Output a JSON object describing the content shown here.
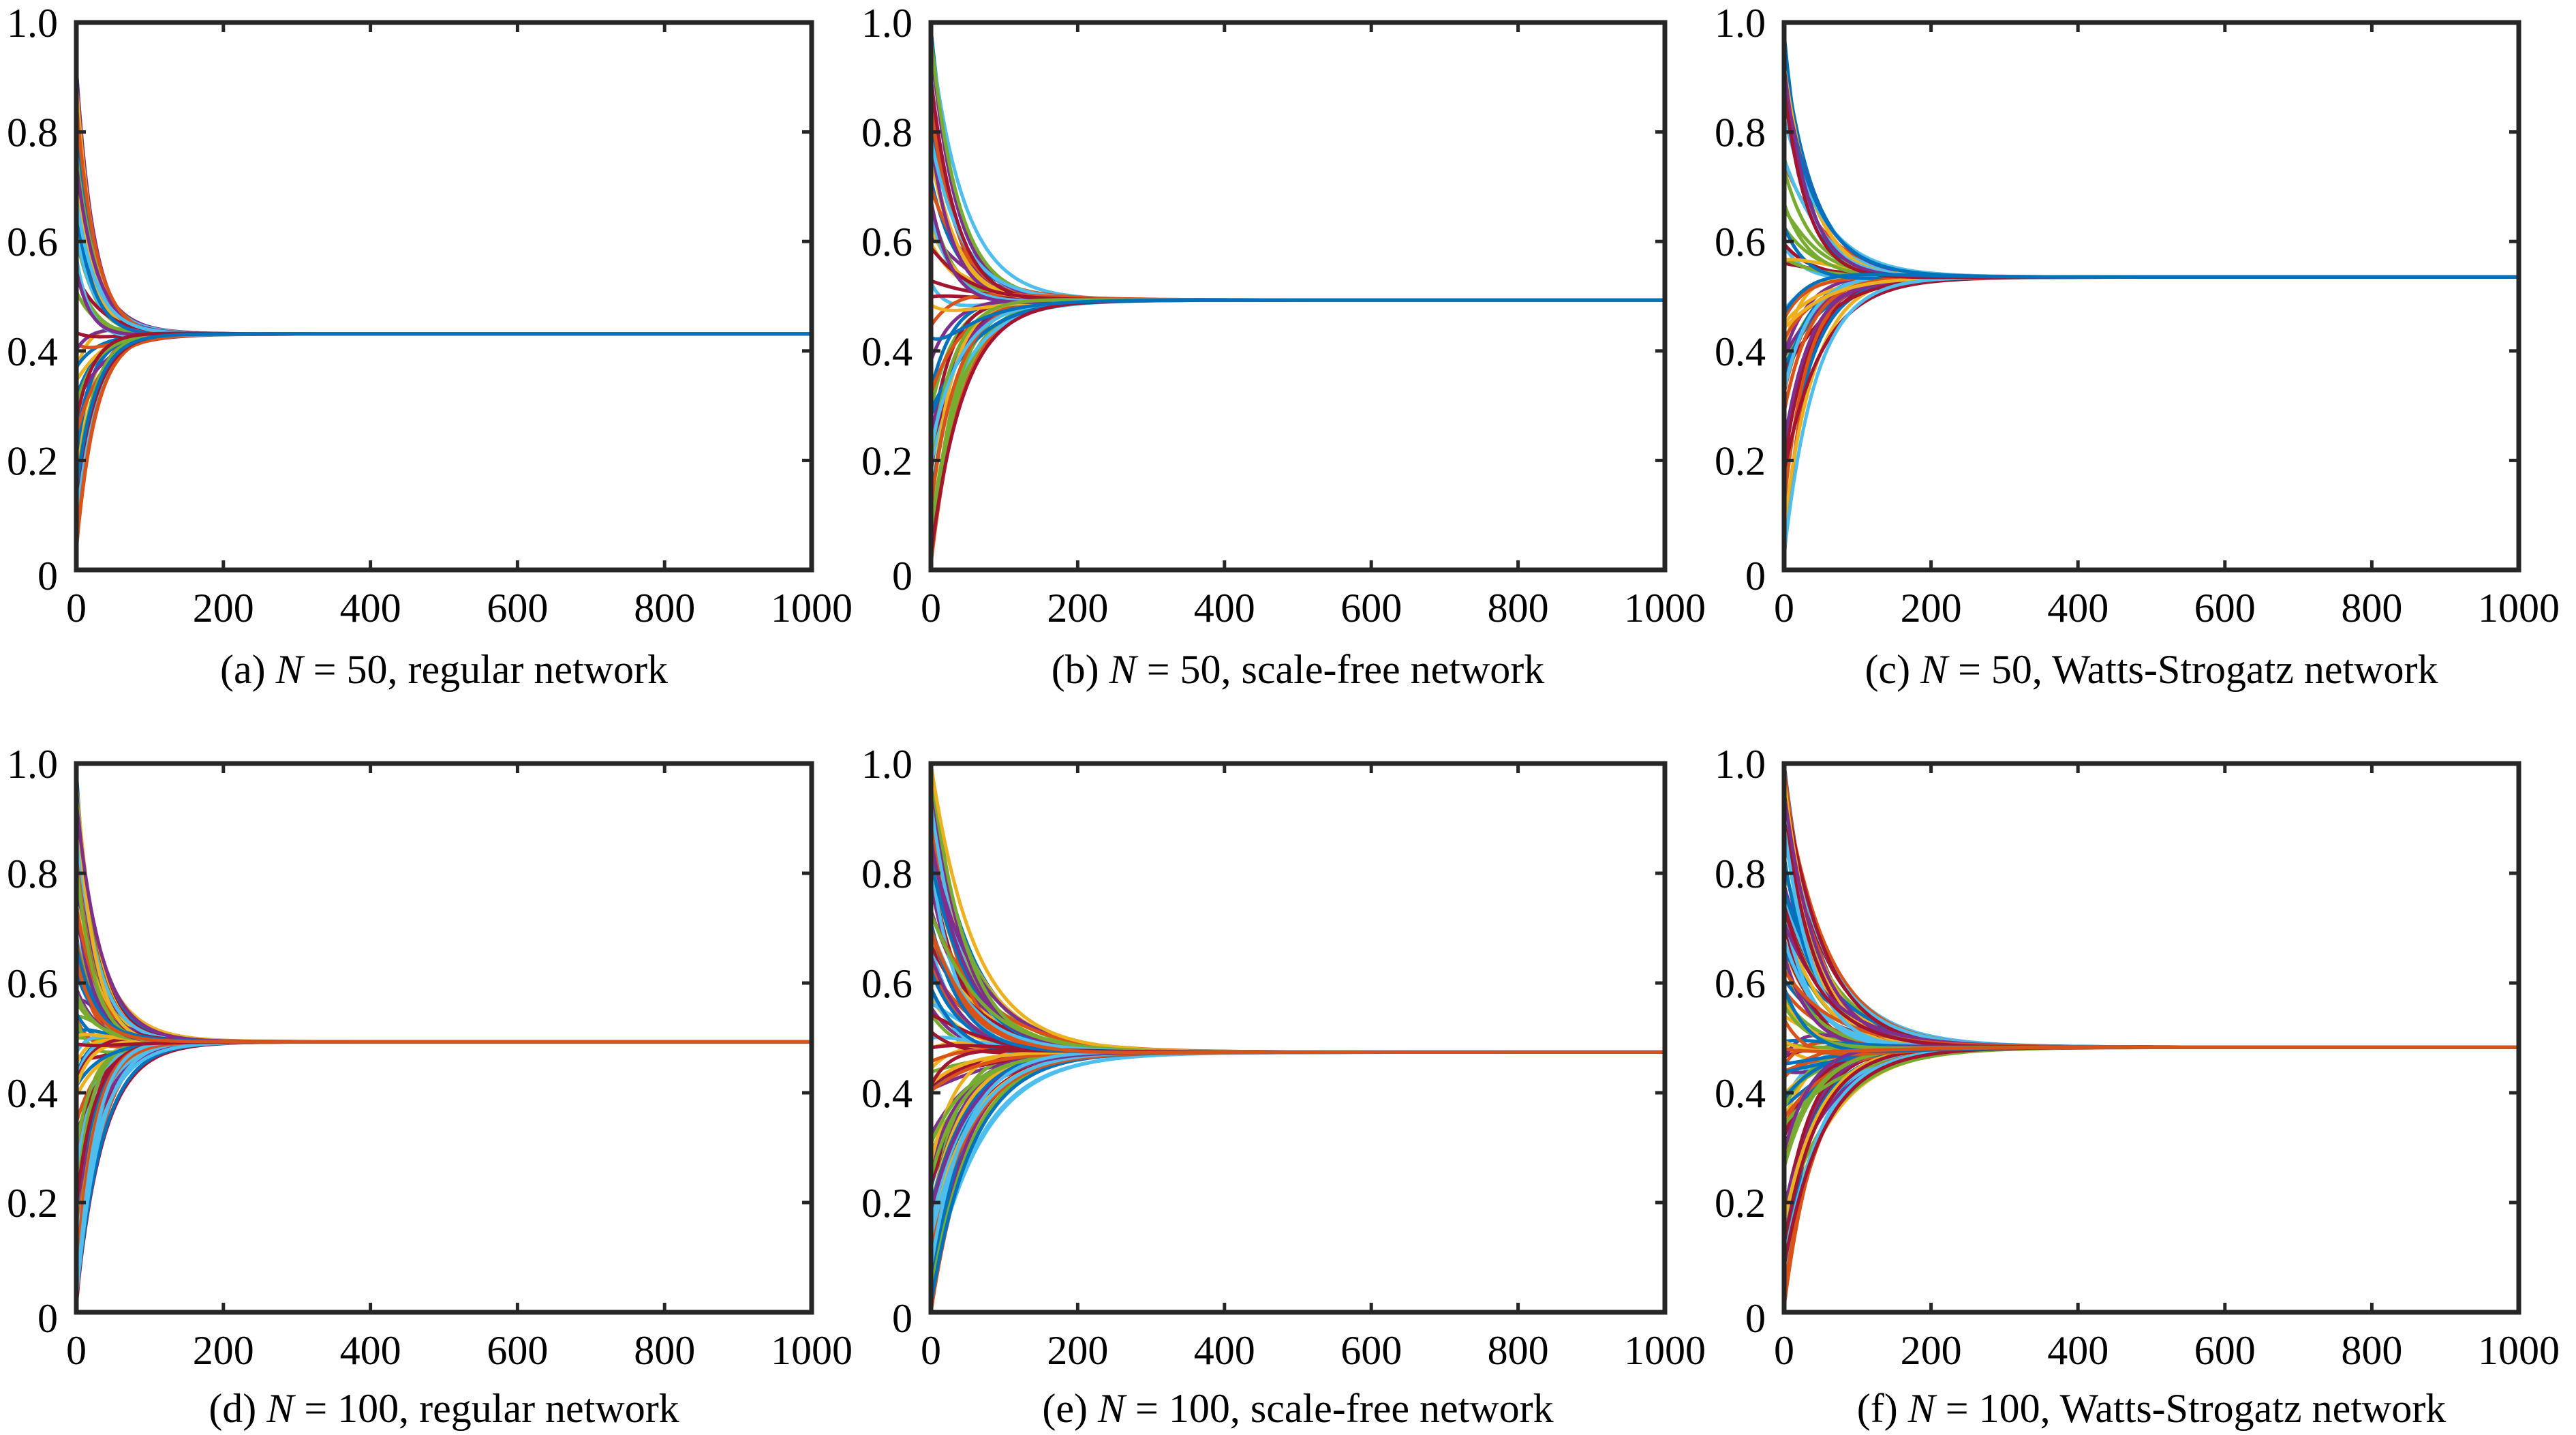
{
  "figure": {
    "palette": [
      "#0072BD",
      "#D95319",
      "#EDB120",
      "#7E2F8E",
      "#77AC30",
      "#4DBEEE",
      "#A2142F"
    ]
  },
  "chart_data": [
    {
      "id": "a",
      "type": "line",
      "caption": {
        "prefix": "(a) ",
        "var": "N",
        "rest": " = 50, regular network"
      },
      "xlim": [
        0,
        1000
      ],
      "ylim": [
        0,
        1.0
      ],
      "xticks": [
        0,
        200,
        400,
        600,
        800,
        1000
      ],
      "xtick_labels": [
        "0",
        "200",
        "400",
        "600",
        "800",
        "1000"
      ],
      "yticks": [
        0,
        0.2,
        0.4,
        0.6,
        0.8,
        1.0
      ],
      "ytick_labels": [
        "0",
        "0.2",
        "0.4",
        "0.6",
        "0.8",
        "1.0"
      ],
      "grid": false,
      "legend": "none",
      "num_series": 50,
      "consensus_value": 0.431,
      "convergence_time": 150,
      "initial_value_range": [
        0.03,
        0.92
      ],
      "final_series_color": "#0072BD"
    },
    {
      "id": "b",
      "type": "line",
      "caption": {
        "prefix": "(b) ",
        "var": "N",
        "rest": " = 50, scale-free network"
      },
      "xlim": [
        0,
        1000
      ],
      "ylim": [
        0,
        1.0
      ],
      "xticks": [
        0,
        200,
        400,
        600,
        800,
        1000
      ],
      "xtick_labels": [
        "0",
        "200",
        "400",
        "600",
        "800",
        "1000"
      ],
      "yticks": [
        0,
        0.2,
        0.4,
        0.6,
        0.8,
        1.0
      ],
      "ytick_labels": [
        "0",
        "0.2",
        "0.4",
        "0.6",
        "0.8",
        "1.0"
      ],
      "grid": false,
      "legend": "none",
      "num_series": 50,
      "consensus_value": 0.493,
      "convergence_time": 220,
      "initial_value_range": [
        0.01,
        0.99
      ],
      "final_series_color": "#0072BD"
    },
    {
      "id": "c",
      "type": "line",
      "caption": {
        "prefix": "(c) ",
        "var": "N",
        "rest": " = 50, Watts-Strogatz network"
      },
      "xlim": [
        0,
        1000
      ],
      "ylim": [
        0,
        1.0
      ],
      "xticks": [
        0,
        200,
        400,
        600,
        800,
        1000
      ],
      "xtick_labels": [
        "0",
        "200",
        "400",
        "600",
        "800",
        "1000"
      ],
      "yticks": [
        0,
        0.2,
        0.4,
        0.6,
        0.8,
        1.0
      ],
      "ytick_labels": [
        "0",
        "0.2",
        "0.4",
        "0.6",
        "0.8",
        "1.0"
      ],
      "grid": false,
      "legend": "none",
      "num_series": 50,
      "consensus_value": 0.535,
      "convergence_time": 230,
      "initial_value_range": [
        0.02,
        0.98
      ],
      "final_series_color": "#0072BD"
    },
    {
      "id": "d",
      "type": "line",
      "caption": {
        "prefix": "(d) ",
        "var": "N",
        "rest": " = 100, regular network"
      },
      "xlim": [
        0,
        1000
      ],
      "ylim": [
        0,
        1.0
      ],
      "xticks": [
        0,
        200,
        400,
        600,
        800,
        1000
      ],
      "xtick_labels": [
        "0",
        "200",
        "400",
        "600",
        "800",
        "1000"
      ],
      "yticks": [
        0,
        0.2,
        0.4,
        0.6,
        0.8,
        1.0
      ],
      "ytick_labels": [
        "0",
        "0.2",
        "0.4",
        "0.6",
        "0.8",
        "1.0"
      ],
      "grid": false,
      "legend": "none",
      "num_series": 100,
      "consensus_value": 0.493,
      "convergence_time": 160,
      "initial_value_range": [
        0.01,
        0.99
      ],
      "final_series_color": "#D95319"
    },
    {
      "id": "e",
      "type": "line",
      "caption": {
        "prefix": "(e) ",
        "var": "N",
        "rest": " = 100, scale-free network"
      },
      "xlim": [
        0,
        1000
      ],
      "ylim": [
        0,
        1.0
      ],
      "xticks": [
        0,
        200,
        400,
        600,
        800,
        1000
      ],
      "xtick_labels": [
        "0",
        "200",
        "400",
        "600",
        "800",
        "1000"
      ],
      "yticks": [
        0,
        0.2,
        0.4,
        0.6,
        0.8,
        1.0
      ],
      "ytick_labels": [
        "0",
        "0.2",
        "0.4",
        "0.6",
        "0.8",
        "1.0"
      ],
      "grid": false,
      "legend": "none",
      "num_series": 100,
      "consensus_value": 0.474,
      "convergence_time": 280,
      "initial_value_range": [
        0.0,
        1.0
      ],
      "final_series_color": "#D95319"
    },
    {
      "id": "f",
      "type": "line",
      "caption": {
        "prefix": "(f) ",
        "var": "N",
        "rest": " = 100, Watts-Strogatz network"
      },
      "xlim": [
        0,
        1000
      ],
      "ylim": [
        0,
        1.0
      ],
      "xticks": [
        0,
        200,
        400,
        600,
        800,
        1000
      ],
      "xtick_labels": [
        "0",
        "200",
        "400",
        "600",
        "800",
        "1000"
      ],
      "yticks": [
        0,
        0.2,
        0.4,
        0.6,
        0.8,
        1.0
      ],
      "ytick_labels": [
        "0",
        "0.2",
        "0.4",
        "0.6",
        "0.8",
        "1.0"
      ],
      "grid": false,
      "legend": "none",
      "num_series": 100,
      "consensus_value": 0.483,
      "convergence_time": 280,
      "initial_value_range": [
        0.01,
        1.0
      ],
      "final_series_color": "#D95319"
    }
  ]
}
